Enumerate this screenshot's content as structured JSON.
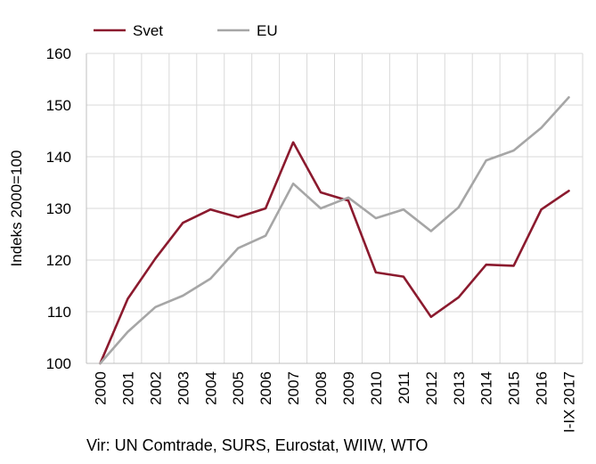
{
  "chart_data": {
    "type": "line",
    "title": "",
    "xlabel": "",
    "ylabel": "Indeks 2000=100",
    "ylim": [
      100,
      160
    ],
    "yticks": [
      100,
      110,
      120,
      130,
      140,
      150,
      160
    ],
    "grid": true,
    "legend_position": "top-left",
    "categories": [
      "2000",
      "2001",
      "2002",
      "2003",
      "2004",
      "2005",
      "2006",
      "2007",
      "2008",
      "2009",
      "2010",
      "2011",
      "2012",
      "2013",
      "2014",
      "2015",
      "2016",
      "I-IX 2017"
    ],
    "series": [
      {
        "name": "Svet",
        "color": "#8b1a2e",
        "values": [
          100,
          112.5,
          120.3,
          127.2,
          129.8,
          128.3,
          130.0,
          142.8,
          133.1,
          131.5,
          117.6,
          116.8,
          109.0,
          112.8,
          119.1,
          118.9,
          129.8,
          133.4
        ]
      },
      {
        "name": "EU",
        "color": "#a6a6a6",
        "values": [
          100,
          106.1,
          110.9,
          113.1,
          116.4,
          122.3,
          124.7,
          134.8,
          130.0,
          132.1,
          128.1,
          129.8,
          125.6,
          130.2,
          139.3,
          141.2,
          145.6,
          151.5
        ]
      }
    ]
  },
  "source_text": "Vir: UN Comtrade, SURS, Eurostat, WIIW, WTO"
}
